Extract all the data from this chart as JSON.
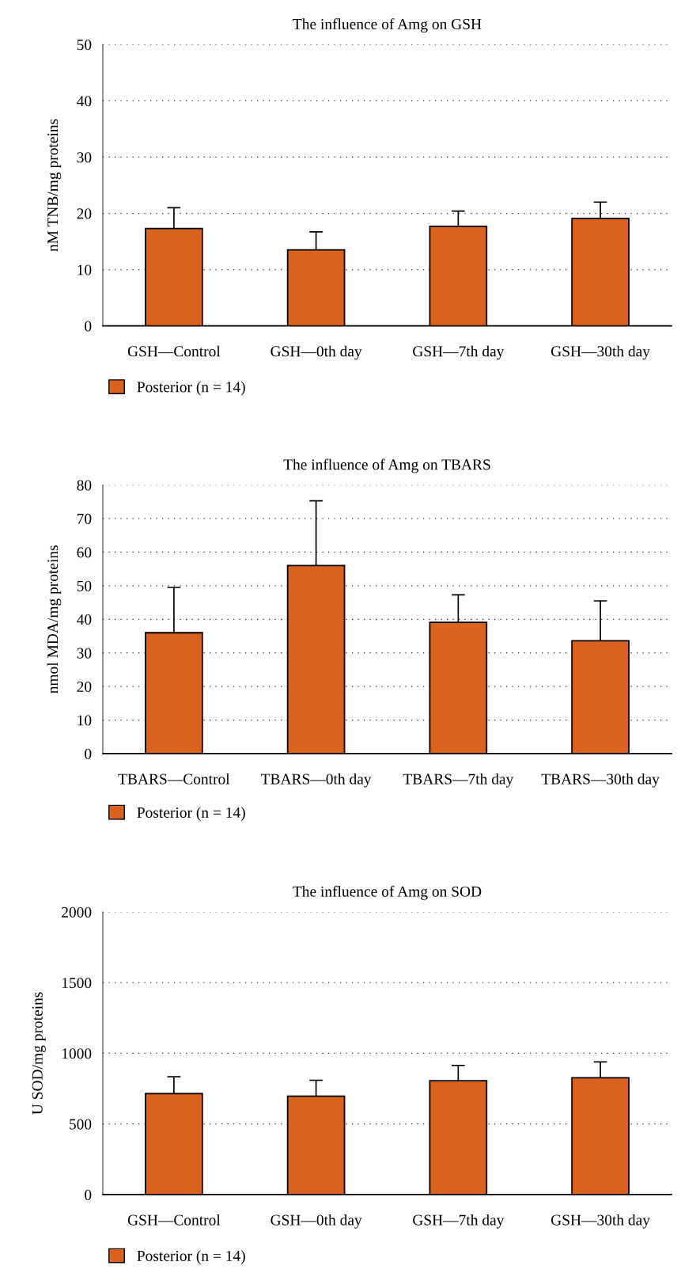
{
  "chart_data": [
    {
      "type": "bar",
      "title": "The influence of Amg on GSH",
      "ylabel": "nM TNB/mg proteins",
      "categories": [
        "GSH—Control",
        "GSH—0th day",
        "GSH—7th day",
        "GSH—30th day"
      ],
      "series": [
        {
          "name": "Posterior (n = 14)",
          "color": "#d9621f",
          "values": [
            17.3,
            13.5,
            17.7,
            19.1
          ],
          "errors": [
            3.7,
            3.2,
            2.7,
            2.9
          ]
        }
      ],
      "ylim": [
        0,
        50
      ],
      "yticks": [
        0,
        10,
        20,
        30,
        40,
        50
      ],
      "grid": "y",
      "legend": "bottom"
    },
    {
      "type": "bar",
      "title": "The influence of Amg on TBARS",
      "ylabel": "nmol MDA/mg proteins",
      "categories": [
        "TBARS—Control",
        "TBARS—0th day",
        "TBARS—7th day",
        "TBARS—30th day"
      ],
      "series": [
        {
          "name": "Posterior (n = 14)",
          "color": "#d9621f",
          "values": [
            36.0,
            56.0,
            39.1,
            33.6
          ],
          "errors": [
            13.5,
            19.3,
            8.2,
            11.9
          ]
        }
      ],
      "ylim": [
        0,
        80
      ],
      "yticks": [
        0,
        10,
        20,
        30,
        40,
        50,
        60,
        70,
        80
      ],
      "grid": "y",
      "legend": "bottom"
    },
    {
      "type": "bar",
      "title": "The influence of Amg on SOD",
      "ylabel": "U SOD/mg proteins",
      "categories": [
        "GSH—Control",
        "GSH—0th day",
        "GSH—7th day",
        "GSH—30th day"
      ],
      "series": [
        {
          "name": "Posterior (n = 14)",
          "color": "#d9621f",
          "values": [
            715,
            697,
            806,
            827
          ],
          "errors": [
            119,
            112,
            108,
            112
          ]
        }
      ],
      "ylim": [
        0,
        2000
      ],
      "yticks": [
        0,
        500,
        1000,
        1500,
        2000
      ],
      "grid": "y",
      "legend": "bottom"
    }
  ]
}
